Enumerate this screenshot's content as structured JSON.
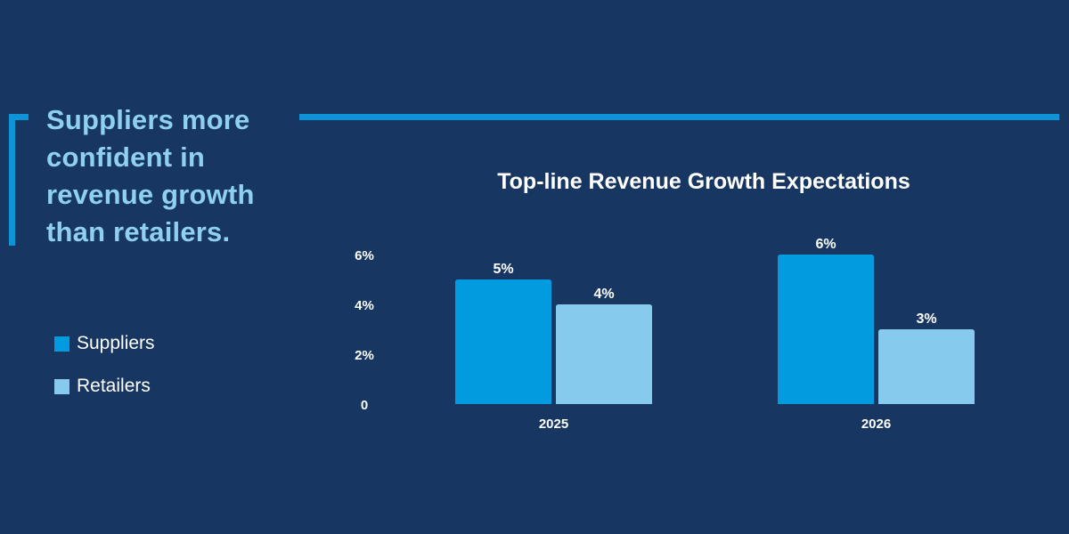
{
  "headline": "Suppliers more confident in revenue growth than retailers.",
  "chart_data": {
    "type": "bar",
    "title": "Top-line Revenue Growth Expectations",
    "xlabel": "",
    "ylabel": "",
    "categories": [
      "2025",
      "2026"
    ],
    "series": [
      {
        "name": "Suppliers",
        "values": [
          5,
          6
        ],
        "labels": [
          "5%",
          "6%"
        ],
        "color": "#039be0"
      },
      {
        "name": "Retailers",
        "values": [
          4,
          3
        ],
        "labels": [
          "4%",
          "3%"
        ],
        "color": "#86cbee"
      }
    ],
    "y_ticks": [
      0,
      2,
      4,
      6
    ],
    "y_tick_labels": [
      "0",
      "2%",
      "4%",
      "6%"
    ],
    "ylim": [
      0,
      6
    ],
    "grid": false,
    "legend_position": "left"
  },
  "colors": {
    "background": "#173762",
    "accent": "#0e93d6",
    "headline": "#8fd0f0",
    "text": "#ffffff"
  }
}
